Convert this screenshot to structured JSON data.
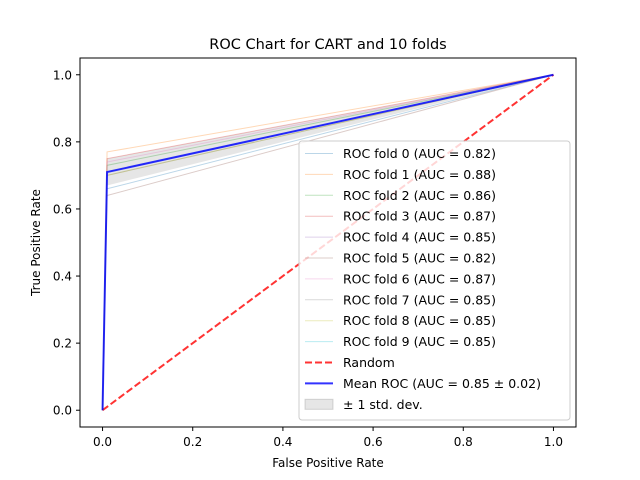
{
  "chart_data": {
    "type": "line",
    "title": "ROC Chart for CART and 10 folds",
    "xlabel": "False Positive Rate",
    "ylabel": "True Positive Rate",
    "xlim": [
      -0.05,
      1.05
    ],
    "ylim": [
      -0.05,
      1.05
    ],
    "xticks": [
      0.0,
      0.2,
      0.4,
      0.6,
      0.8,
      1.0
    ],
    "yticks": [
      0.0,
      0.2,
      0.4,
      0.6,
      0.8,
      1.0
    ],
    "xtick_labels": [
      "0.0",
      "0.2",
      "0.4",
      "0.6",
      "0.8",
      "1.0"
    ],
    "ytick_labels": [
      "0.0",
      "0.2",
      "0.4",
      "0.6",
      "0.8",
      "1.0"
    ],
    "grid": false,
    "legend_position": "lower-right",
    "series": [
      {
        "name": "ROC fold 0 (AUC = 0.82)",
        "color": "#1f77b4",
        "x": [
          0,
          0.01,
          1
        ],
        "y": [
          0,
          0.66,
          1
        ]
      },
      {
        "name": "ROC fold 1 (AUC = 0.88)",
        "color": "#ff7f0e",
        "x": [
          0,
          0.01,
          1
        ],
        "y": [
          0,
          0.77,
          1
        ]
      },
      {
        "name": "ROC fold 2 (AUC = 0.86)",
        "color": "#2ca02c",
        "x": [
          0,
          0.01,
          1
        ],
        "y": [
          0,
          0.73,
          1
        ]
      },
      {
        "name": "ROC fold 3 (AUC = 0.87)",
        "color": "#d62728",
        "x": [
          0,
          0.01,
          1
        ],
        "y": [
          0,
          0.75,
          1
        ]
      },
      {
        "name": "ROC fold 4 (AUC = 0.85)",
        "color": "#9467bd",
        "x": [
          0,
          0.01,
          1
        ],
        "y": [
          0,
          0.71,
          1
        ]
      },
      {
        "name": "ROC fold 5 (AUC = 0.82)",
        "color": "#8c564b",
        "x": [
          0,
          0.01,
          1
        ],
        "y": [
          0,
          0.64,
          1
        ]
      },
      {
        "name": "ROC fold 6 (AUC = 0.87)",
        "color": "#e377c2",
        "x": [
          0,
          0.01,
          1
        ],
        "y": [
          0,
          0.74,
          1
        ]
      },
      {
        "name": "ROC fold 7 (AUC = 0.85)",
        "color": "#7f7f7f",
        "x": [
          0,
          0.01,
          1
        ],
        "y": [
          0,
          0.7,
          1
        ]
      },
      {
        "name": "ROC fold 8 (AUC = 0.85)",
        "color": "#bcbd22",
        "x": [
          0,
          0.01,
          1
        ],
        "y": [
          0,
          0.7,
          1
        ]
      },
      {
        "name": "ROC fold 9 (AUC = 0.85)",
        "color": "#17becf",
        "x": [
          0,
          0.01,
          1
        ],
        "y": [
          0,
          0.71,
          1
        ]
      }
    ],
    "random": {
      "name": "Random",
      "color": "#ff0000",
      "x": [
        0,
        1
      ],
      "y": [
        0,
        1
      ]
    },
    "mean": {
      "name": "Mean ROC (AUC = 0.85 ± 0.02)",
      "color": "#0000ff",
      "x": [
        0,
        0.01,
        1
      ],
      "y": [
        0,
        0.71,
        1
      ]
    },
    "std_band": {
      "name": "± 1 std. dev.",
      "color": "#808080",
      "x": [
        0,
        0.01,
        1
      ],
      "upper": [
        0,
        0.75,
        1
      ],
      "lower": [
        0,
        0.67,
        1
      ]
    }
  }
}
